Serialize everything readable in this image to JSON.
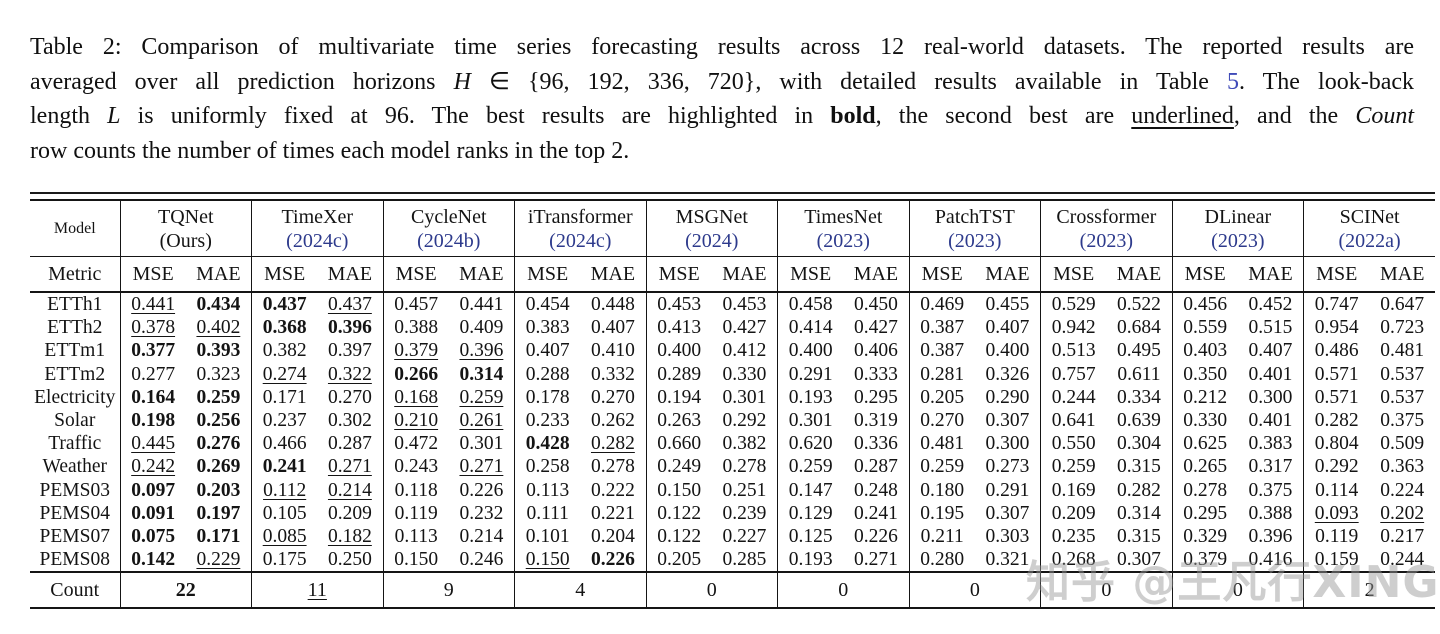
{
  "page": {
    "background": "#ffffff",
    "text_color": "#141414",
    "citation_year_color": "#2d3a8c",
    "ref_link_color": "#3f4ab8"
  },
  "caption": {
    "lines": [
      {
        "segments": [
          {
            "text": "Table 2: Comparison of multivariate time series forecasting results across 12 real-world datasets. The reported results are",
            "style": "plain"
          }
        ]
      },
      {
        "segments": [
          {
            "text": "averaged over all prediction horizons ",
            "style": "plain"
          },
          {
            "text": "H",
            "style": "math"
          },
          {
            "text": " ∈ {96, 192, 336, 720}, with detailed results available in Table ",
            "style": "plain"
          },
          {
            "text": "5",
            "style": "link"
          },
          {
            "text": ". The look-back",
            "style": "plain"
          }
        ]
      },
      {
        "segments": [
          {
            "text": "length ",
            "style": "plain"
          },
          {
            "text": "L",
            "style": "math"
          },
          {
            "text": " is uniformly fixed at 96. The best results are highlighted in ",
            "style": "plain"
          },
          {
            "text": "bold",
            "style": "bold"
          },
          {
            "text": ", the second best are ",
            "style": "plain"
          },
          {
            "text": "underlined",
            "style": "underline"
          },
          {
            "text": ", and the ",
            "style": "plain"
          },
          {
            "text": "Count",
            "style": "italic"
          }
        ]
      },
      {
        "segments": [
          {
            "text": "row counts the number of times each model ranks in the top 2.",
            "style": "plain"
          }
        ]
      }
    ]
  },
  "table": {
    "corner_label": "Model",
    "metric_label": "Metric",
    "metrics": [
      "MSE",
      "MAE"
    ],
    "models": [
      {
        "name": "TQNet",
        "year": "(Ours)",
        "year_color": "black"
      },
      {
        "name": "TimeXer",
        "year": "(2024c)",
        "year_color": "blue"
      },
      {
        "name": "CycleNet",
        "year": "(2024b)",
        "year_color": "blue"
      },
      {
        "name": "iTransformer",
        "year": "(2024c)",
        "year_color": "blue"
      },
      {
        "name": "MSGNet",
        "year": "(2024)",
        "year_color": "blue"
      },
      {
        "name": "TimesNet",
        "year": "(2023)",
        "year_color": "blue"
      },
      {
        "name": "PatchTST",
        "year": "(2023)",
        "year_color": "blue"
      },
      {
        "name": "Crossformer",
        "year": "(2023)",
        "year_color": "blue"
      },
      {
        "name": "DLinear",
        "year": "(2023)",
        "year_color": "blue"
      },
      {
        "name": "SCINet",
        "year": "(2022a)",
        "year_color": "blue"
      }
    ],
    "rows": [
      {
        "dataset": "ETTh1",
        "cells": [
          [
            "0.441",
            "second"
          ],
          [
            "0.434",
            "best"
          ],
          [
            "0.437",
            "best"
          ],
          [
            "0.437",
            "second"
          ],
          [
            "0.457",
            ""
          ],
          [
            "0.441",
            ""
          ],
          [
            "0.454",
            ""
          ],
          [
            "0.448",
            ""
          ],
          [
            "0.453",
            ""
          ],
          [
            "0.453",
            ""
          ],
          [
            "0.458",
            ""
          ],
          [
            "0.450",
            ""
          ],
          [
            "0.469",
            ""
          ],
          [
            "0.455",
            ""
          ],
          [
            "0.529",
            ""
          ],
          [
            "0.522",
            ""
          ],
          [
            "0.456",
            ""
          ],
          [
            "0.452",
            ""
          ],
          [
            "0.747",
            ""
          ],
          [
            "0.647",
            ""
          ]
        ]
      },
      {
        "dataset": "ETTh2",
        "cells": [
          [
            "0.378",
            "second"
          ],
          [
            "0.402",
            "second"
          ],
          [
            "0.368",
            "best"
          ],
          [
            "0.396",
            "best"
          ],
          [
            "0.388",
            ""
          ],
          [
            "0.409",
            ""
          ],
          [
            "0.383",
            ""
          ],
          [
            "0.407",
            ""
          ],
          [
            "0.413",
            ""
          ],
          [
            "0.427",
            ""
          ],
          [
            "0.414",
            ""
          ],
          [
            "0.427",
            ""
          ],
          [
            "0.387",
            ""
          ],
          [
            "0.407",
            ""
          ],
          [
            "0.942",
            ""
          ],
          [
            "0.684",
            ""
          ],
          [
            "0.559",
            ""
          ],
          [
            "0.515",
            ""
          ],
          [
            "0.954",
            ""
          ],
          [
            "0.723",
            ""
          ]
        ]
      },
      {
        "dataset": "ETTm1",
        "cells": [
          [
            "0.377",
            "best"
          ],
          [
            "0.393",
            "best"
          ],
          [
            "0.382",
            ""
          ],
          [
            "0.397",
            ""
          ],
          [
            "0.379",
            "second"
          ],
          [
            "0.396",
            "second"
          ],
          [
            "0.407",
            ""
          ],
          [
            "0.410",
            ""
          ],
          [
            "0.400",
            ""
          ],
          [
            "0.412",
            ""
          ],
          [
            "0.400",
            ""
          ],
          [
            "0.406",
            ""
          ],
          [
            "0.387",
            ""
          ],
          [
            "0.400",
            ""
          ],
          [
            "0.513",
            ""
          ],
          [
            "0.495",
            ""
          ],
          [
            "0.403",
            ""
          ],
          [
            "0.407",
            ""
          ],
          [
            "0.486",
            ""
          ],
          [
            "0.481",
            ""
          ]
        ]
      },
      {
        "dataset": "ETTm2",
        "cells": [
          [
            "0.277",
            ""
          ],
          [
            "0.323",
            ""
          ],
          [
            "0.274",
            "second"
          ],
          [
            "0.322",
            "second"
          ],
          [
            "0.266",
            "best"
          ],
          [
            "0.314",
            "best"
          ],
          [
            "0.288",
            ""
          ],
          [
            "0.332",
            ""
          ],
          [
            "0.289",
            ""
          ],
          [
            "0.330",
            ""
          ],
          [
            "0.291",
            ""
          ],
          [
            "0.333",
            ""
          ],
          [
            "0.281",
            ""
          ],
          [
            "0.326",
            ""
          ],
          [
            "0.757",
            ""
          ],
          [
            "0.611",
            ""
          ],
          [
            "0.350",
            ""
          ],
          [
            "0.401",
            ""
          ],
          [
            "0.571",
            ""
          ],
          [
            "0.537",
            ""
          ]
        ]
      },
      {
        "dataset": "Electricity",
        "cells": [
          [
            "0.164",
            "best"
          ],
          [
            "0.259",
            "best"
          ],
          [
            "0.171",
            ""
          ],
          [
            "0.270",
            ""
          ],
          [
            "0.168",
            "second"
          ],
          [
            "0.259",
            "second"
          ],
          [
            "0.178",
            ""
          ],
          [
            "0.270",
            ""
          ],
          [
            "0.194",
            ""
          ],
          [
            "0.301",
            ""
          ],
          [
            "0.193",
            ""
          ],
          [
            "0.295",
            ""
          ],
          [
            "0.205",
            ""
          ],
          [
            "0.290",
            ""
          ],
          [
            "0.244",
            ""
          ],
          [
            "0.334",
            ""
          ],
          [
            "0.212",
            ""
          ],
          [
            "0.300",
            ""
          ],
          [
            "0.571",
            ""
          ],
          [
            "0.537",
            ""
          ]
        ]
      },
      {
        "dataset": "Solar",
        "cells": [
          [
            "0.198",
            "best"
          ],
          [
            "0.256",
            "best"
          ],
          [
            "0.237",
            ""
          ],
          [
            "0.302",
            ""
          ],
          [
            "0.210",
            "second"
          ],
          [
            "0.261",
            "second"
          ],
          [
            "0.233",
            ""
          ],
          [
            "0.262",
            ""
          ],
          [
            "0.263",
            ""
          ],
          [
            "0.292",
            ""
          ],
          [
            "0.301",
            ""
          ],
          [
            "0.319",
            ""
          ],
          [
            "0.270",
            ""
          ],
          [
            "0.307",
            ""
          ],
          [
            "0.641",
            ""
          ],
          [
            "0.639",
            ""
          ],
          [
            "0.330",
            ""
          ],
          [
            "0.401",
            ""
          ],
          [
            "0.282",
            ""
          ],
          [
            "0.375",
            ""
          ]
        ]
      },
      {
        "dataset": "Traffic",
        "cells": [
          [
            "0.445",
            "second"
          ],
          [
            "0.276",
            "best"
          ],
          [
            "0.466",
            ""
          ],
          [
            "0.287",
            ""
          ],
          [
            "0.472",
            ""
          ],
          [
            "0.301",
            ""
          ],
          [
            "0.428",
            "best"
          ],
          [
            "0.282",
            "second"
          ],
          [
            "0.660",
            ""
          ],
          [
            "0.382",
            ""
          ],
          [
            "0.620",
            ""
          ],
          [
            "0.336",
            ""
          ],
          [
            "0.481",
            ""
          ],
          [
            "0.300",
            ""
          ],
          [
            "0.550",
            ""
          ],
          [
            "0.304",
            ""
          ],
          [
            "0.625",
            ""
          ],
          [
            "0.383",
            ""
          ],
          [
            "0.804",
            ""
          ],
          [
            "0.509",
            ""
          ]
        ]
      },
      {
        "dataset": "Weather",
        "cells": [
          [
            "0.242",
            "second"
          ],
          [
            "0.269",
            "best"
          ],
          [
            "0.241",
            "best"
          ],
          [
            "0.271",
            "second"
          ],
          [
            "0.243",
            ""
          ],
          [
            "0.271",
            "second"
          ],
          [
            "0.258",
            ""
          ],
          [
            "0.278",
            ""
          ],
          [
            "0.249",
            ""
          ],
          [
            "0.278",
            ""
          ],
          [
            "0.259",
            ""
          ],
          [
            "0.287",
            ""
          ],
          [
            "0.259",
            ""
          ],
          [
            "0.273",
            ""
          ],
          [
            "0.259",
            ""
          ],
          [
            "0.315",
            ""
          ],
          [
            "0.265",
            ""
          ],
          [
            "0.317",
            ""
          ],
          [
            "0.292",
            ""
          ],
          [
            "0.363",
            ""
          ]
        ]
      },
      {
        "dataset": "PEMS03",
        "cells": [
          [
            "0.097",
            "best"
          ],
          [
            "0.203",
            "best"
          ],
          [
            "0.112",
            "second"
          ],
          [
            "0.214",
            "second"
          ],
          [
            "0.118",
            ""
          ],
          [
            "0.226",
            ""
          ],
          [
            "0.113",
            ""
          ],
          [
            "0.222",
            ""
          ],
          [
            "0.150",
            ""
          ],
          [
            "0.251",
            ""
          ],
          [
            "0.147",
            ""
          ],
          [
            "0.248",
            ""
          ],
          [
            "0.180",
            ""
          ],
          [
            "0.291",
            ""
          ],
          [
            "0.169",
            ""
          ],
          [
            "0.282",
            ""
          ],
          [
            "0.278",
            ""
          ],
          [
            "0.375",
            ""
          ],
          [
            "0.114",
            ""
          ],
          [
            "0.224",
            ""
          ]
        ]
      },
      {
        "dataset": "PEMS04",
        "cells": [
          [
            "0.091",
            "best"
          ],
          [
            "0.197",
            "best"
          ],
          [
            "0.105",
            ""
          ],
          [
            "0.209",
            ""
          ],
          [
            "0.119",
            ""
          ],
          [
            "0.232",
            ""
          ],
          [
            "0.111",
            ""
          ],
          [
            "0.221",
            ""
          ],
          [
            "0.122",
            ""
          ],
          [
            "0.239",
            ""
          ],
          [
            "0.129",
            ""
          ],
          [
            "0.241",
            ""
          ],
          [
            "0.195",
            ""
          ],
          [
            "0.307",
            ""
          ],
          [
            "0.209",
            ""
          ],
          [
            "0.314",
            ""
          ],
          [
            "0.295",
            ""
          ],
          [
            "0.388",
            ""
          ],
          [
            "0.093",
            "second"
          ],
          [
            "0.202",
            "second"
          ]
        ]
      },
      {
        "dataset": "PEMS07",
        "cells": [
          [
            "0.075",
            "best"
          ],
          [
            "0.171",
            "best"
          ],
          [
            "0.085",
            "second"
          ],
          [
            "0.182",
            "second"
          ],
          [
            "0.113",
            ""
          ],
          [
            "0.214",
            ""
          ],
          [
            "0.101",
            ""
          ],
          [
            "0.204",
            ""
          ],
          [
            "0.122",
            ""
          ],
          [
            "0.227",
            ""
          ],
          [
            "0.125",
            ""
          ],
          [
            "0.226",
            ""
          ],
          [
            "0.211",
            ""
          ],
          [
            "0.303",
            ""
          ],
          [
            "0.235",
            ""
          ],
          [
            "0.315",
            ""
          ],
          [
            "0.329",
            ""
          ],
          [
            "0.396",
            ""
          ],
          [
            "0.119",
            ""
          ],
          [
            "0.217",
            ""
          ]
        ]
      },
      {
        "dataset": "PEMS08",
        "cells": [
          [
            "0.142",
            "best"
          ],
          [
            "0.229",
            "second"
          ],
          [
            "0.175",
            ""
          ],
          [
            "0.250",
            ""
          ],
          [
            "0.150",
            ""
          ],
          [
            "0.246",
            ""
          ],
          [
            "0.150",
            "second"
          ],
          [
            "0.226",
            "best"
          ],
          [
            "0.205",
            ""
          ],
          [
            "0.285",
            ""
          ],
          [
            "0.193",
            ""
          ],
          [
            "0.271",
            ""
          ],
          [
            "0.280",
            ""
          ],
          [
            "0.321",
            ""
          ],
          [
            "0.268",
            ""
          ],
          [
            "0.307",
            ""
          ],
          [
            "0.379",
            ""
          ],
          [
            "0.416",
            ""
          ],
          [
            "0.159",
            ""
          ],
          [
            "0.244",
            ""
          ]
        ]
      }
    ],
    "count": {
      "label": "Count",
      "values": [
        [
          "22",
          "best"
        ],
        [
          "11",
          "second"
        ],
        [
          "9",
          ""
        ],
        [
          "4",
          ""
        ],
        [
          "0",
          ""
        ],
        [
          "0",
          ""
        ],
        [
          "0",
          ""
        ],
        [
          "0",
          ""
        ],
        [
          "0",
          ""
        ],
        [
          "2",
          ""
        ]
      ]
    }
  },
  "watermark": {
    "text": "知乎 @王凡行XING"
  }
}
